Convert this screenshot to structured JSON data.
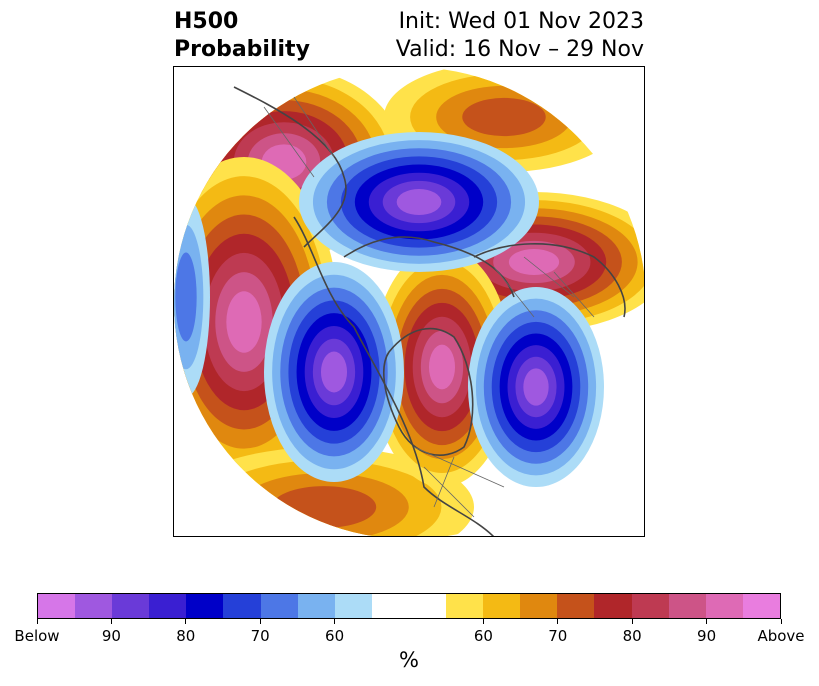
{
  "title": {
    "left_line1": "H500",
    "left_line2": "Probability",
    "right_line1": "Init: Wed 01 Nov 2023",
    "right_line2": "Valid: 16 Nov – 29 Nov"
  },
  "colorbar": {
    "colors": [
      "#d676e8",
      "#9f58e0",
      "#6a3ad8",
      "#3a1fd2",
      "#0000c8",
      "#2540d8",
      "#4d77e6",
      "#79b2f0",
      "#acdcf7",
      "#ffffff",
      "#ffffff",
      "#ffe24a",
      "#f4ba14",
      "#e0880f",
      "#c5521b",
      "#b0262a",
      "#be3a52",
      "#cd5487",
      "#de6ab5",
      "#e97ddf"
    ],
    "tick_labels": [
      "Below",
      "90",
      "80",
      "70",
      "60",
      "60",
      "70",
      "80",
      "90",
      "Above"
    ],
    "unit": "%"
  },
  "legend_classes": {
    "below_90": "#9f58e0",
    "below_70": "#2540d8",
    "below_50": "#acdcf7",
    "above_50": "#ffe24a",
    "above_70": "#c5521b",
    "above_80": "#be3a52",
    "above_max": "#e97ddf"
  }
}
